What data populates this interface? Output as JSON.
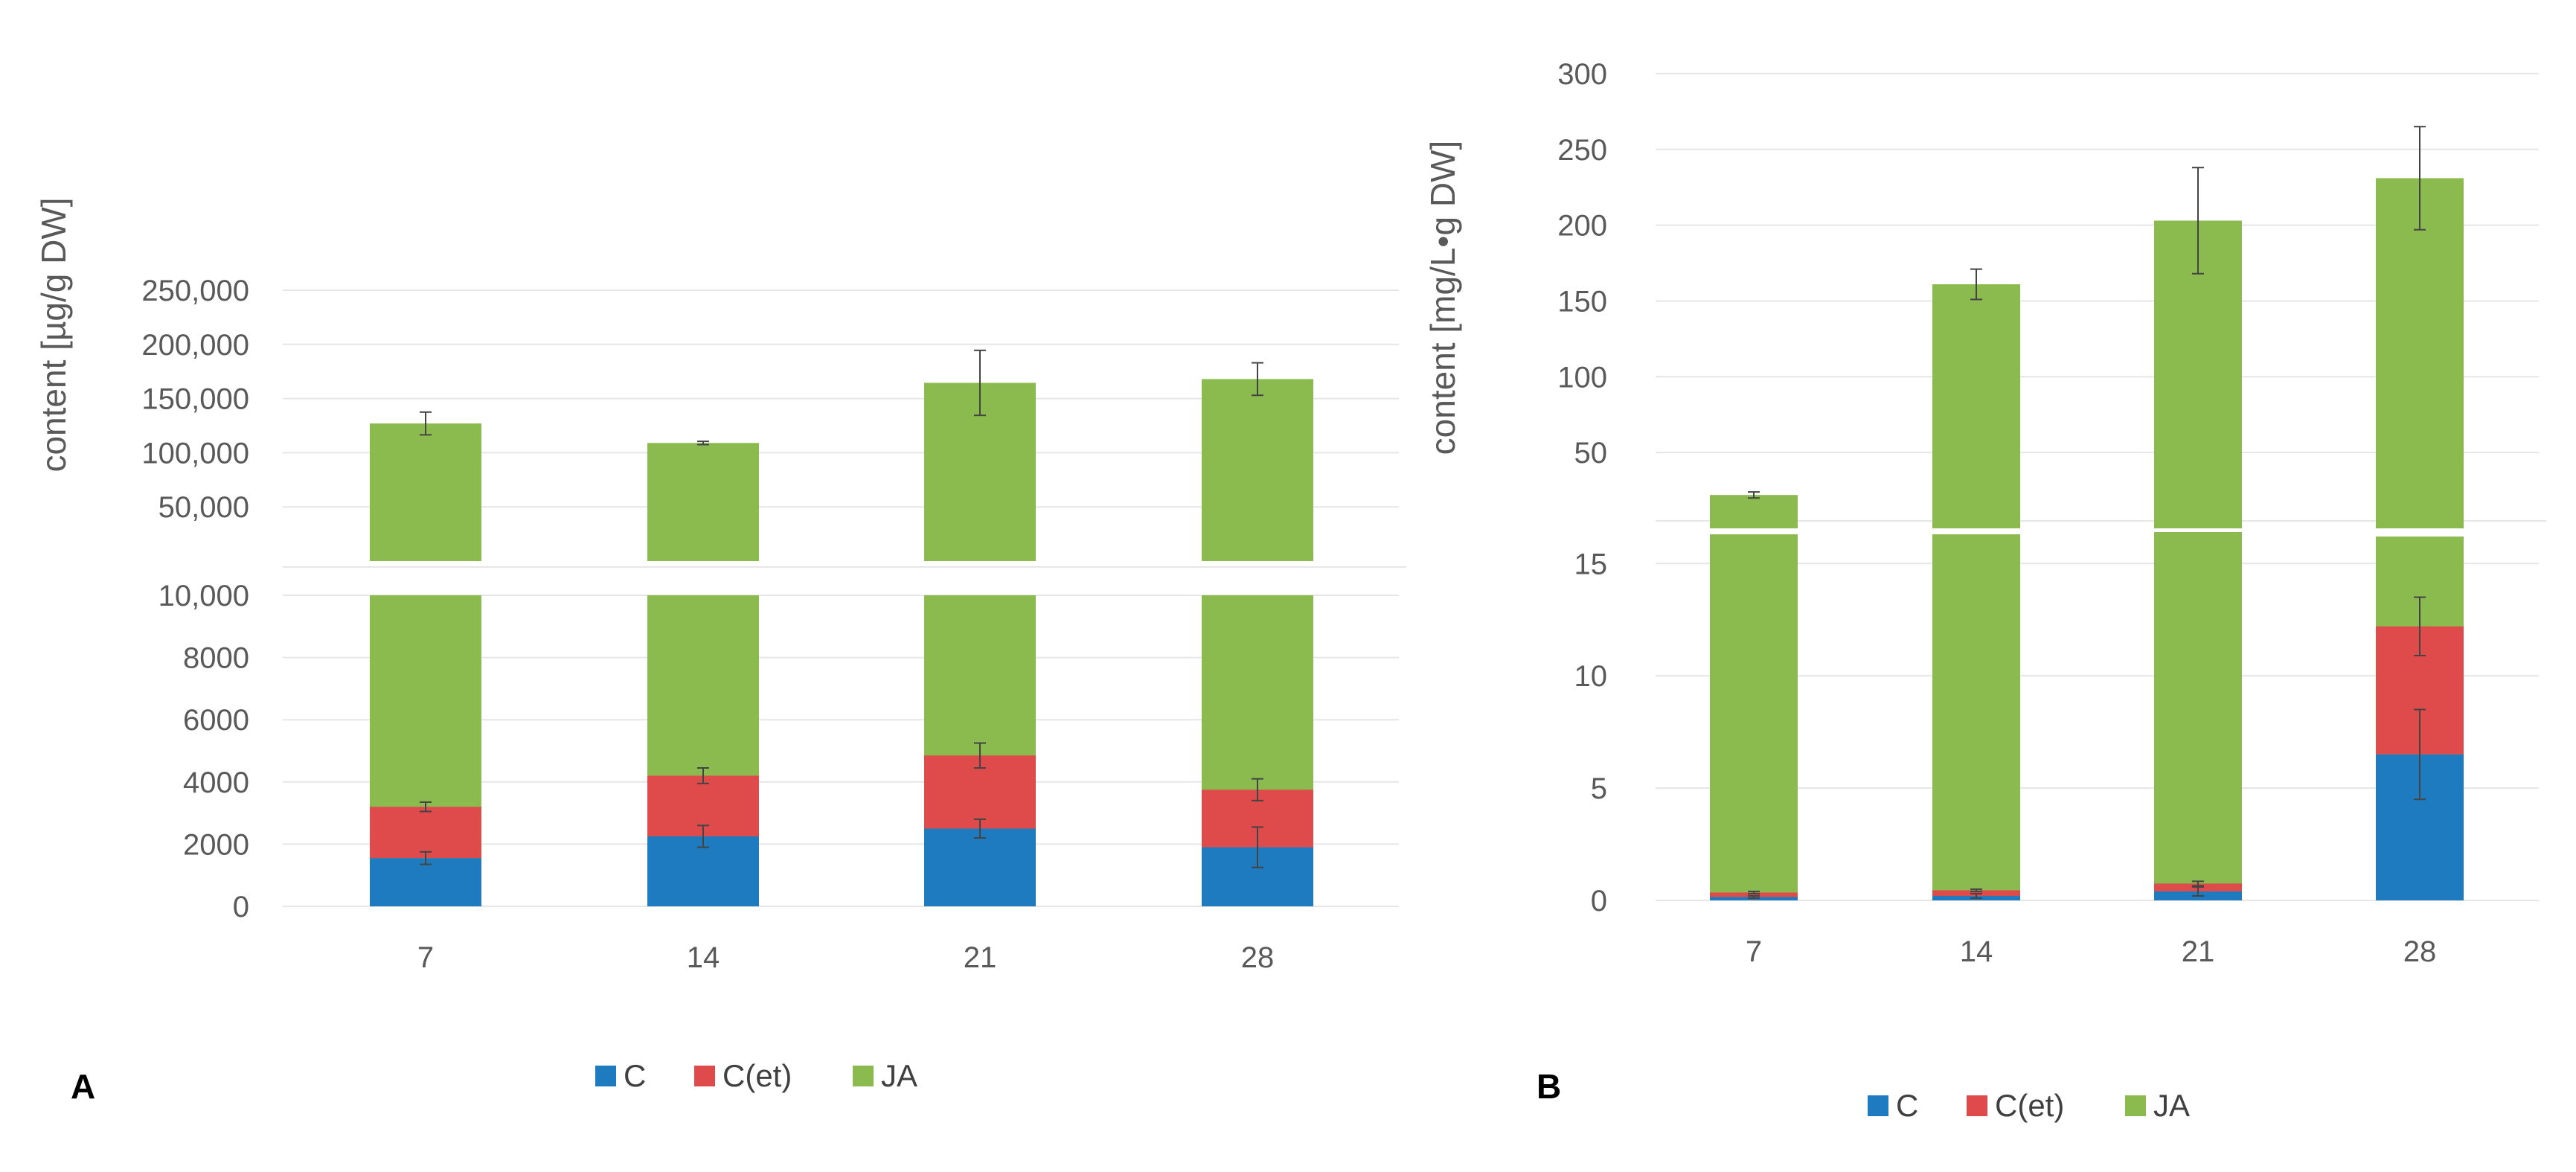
{
  "colors": {
    "C": "#1f7bbf",
    "C(et)": "#df4a4a",
    "JA": "#8bba4e"
  },
  "chart_data": [
    {
      "panel": "A",
      "type": "bar",
      "stacked": true,
      "broken_y_axis": true,
      "ylabel": "content [µg/g DW]",
      "categories": [
        "7",
        "14",
        "21",
        "28"
      ],
      "upper_ticks": [
        "50,000",
        "100,000",
        "150,000",
        "200,000",
        "250,000"
      ],
      "lower_ticks": [
        "0",
        "2000",
        "4000",
        "6000",
        "8000",
        "10,000"
      ],
      "upper_ylim": [
        0,
        250000
      ],
      "lower_ylim": [
        0,
        10000
      ],
      "series": [
        {
          "name": "C",
          "values": [
            1550,
            2250,
            2500,
            1900
          ],
          "errors": [
            200,
            350,
            300,
            650
          ]
        },
        {
          "name": "C(et)",
          "values": [
            1650,
            1950,
            2350,
            1850
          ],
          "errors": [
            150,
            250,
            400,
            350
          ]
        },
        {
          "name": "JA",
          "total_values": [
            127000,
            109000,
            164500,
            168000
          ],
          "total_errors": [
            10500,
            1500,
            30000,
            15000
          ]
        }
      ],
      "legend": [
        "C",
        "C(et)",
        "JA"
      ]
    },
    {
      "panel": "B",
      "type": "bar",
      "stacked": true,
      "broken_y_axis": true,
      "ylabel": "content [mg/L•g DW]",
      "categories": [
        "7",
        "14",
        "21",
        "28"
      ],
      "upper_ticks": [
        "50",
        "100",
        "150",
        "200",
        "250",
        "300"
      ],
      "lower_ticks": [
        "0",
        "5",
        "10",
        "15"
      ],
      "upper_ylim": [
        0,
        300
      ],
      "lower_ylim": [
        0,
        16.5
      ],
      "series": [
        {
          "name": "C",
          "values": [
            0.15,
            0.2,
            0.4,
            6.5
          ],
          "errors": [
            0.05,
            0.1,
            0.2,
            2.0
          ]
        },
        {
          "name": "C(et)",
          "values": [
            0.2,
            0.25,
            0.35,
            5.7
          ],
          "errors": [
            0.05,
            0.05,
            0.1,
            1.3
          ]
        },
        {
          "name": "JA",
          "total_values": [
            22,
            161,
            203,
            231
          ],
          "total_errors": [
            2,
            10,
            35,
            34
          ],
          "lower_top_values": [
            16.3,
            16.3,
            16.4,
            16.2
          ]
        }
      ],
      "legend": [
        "C",
        "C(et)",
        "JA"
      ]
    }
  ]
}
